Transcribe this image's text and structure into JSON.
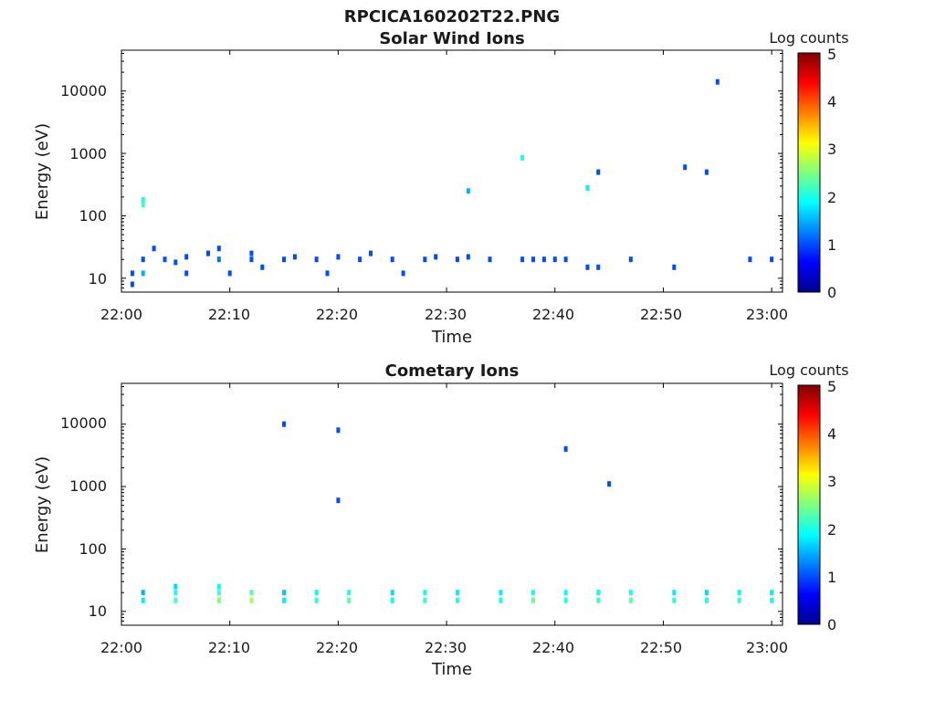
{
  "figure": {
    "title": "RPCICA160202T22.PNG"
  },
  "chart_data": [
    {
      "type": "heatmap",
      "title": "Solar Wind Ions",
      "xlabel": "Time",
      "ylabel": "Energy (eV)",
      "xticks": [
        "22:00",
        "22:10",
        "22:20",
        "22:30",
        "22:40",
        "22:50",
        "23:00"
      ],
      "yticks": [
        "10",
        "100",
        "1000",
        "10000"
      ],
      "yscale": "log",
      "xlim": [
        "22:00",
        "23:01"
      ],
      "ylim": [
        6,
        45000
      ],
      "colorbar": {
        "label": "Log counts",
        "range": [
          0,
          5
        ],
        "ticks": [
          "0",
          "1",
          "2",
          "3",
          "4",
          "5"
        ],
        "colormap": "jet"
      },
      "grid": false,
      "cells": [
        [
          "22:01",
          12,
          1
        ],
        [
          "22:01",
          8,
          1
        ],
        [
          "22:02",
          20,
          1
        ],
        [
          "22:02",
          12,
          1.5
        ],
        [
          "22:02",
          180,
          2
        ],
        [
          "22:02",
          150,
          2.2
        ],
        [
          "22:03",
          30,
          1
        ],
        [
          "22:04",
          20,
          1
        ],
        [
          "22:05",
          18,
          1
        ],
        [
          "22:06",
          22,
          1
        ],
        [
          "22:06",
          12,
          1
        ],
        [
          "22:08",
          25,
          1
        ],
        [
          "22:09",
          20,
          1.2
        ],
        [
          "22:09",
          30,
          1
        ],
        [
          "22:10",
          12,
          1
        ],
        [
          "22:12",
          20,
          1
        ],
        [
          "22:12",
          25,
          1
        ],
        [
          "22:13",
          15,
          1
        ],
        [
          "22:15",
          20,
          1
        ],
        [
          "22:16",
          22,
          1
        ],
        [
          "22:18",
          20,
          1
        ],
        [
          "22:19",
          12,
          1
        ],
        [
          "22:20",
          22,
          1
        ],
        [
          "22:22",
          20,
          1
        ],
        [
          "22:23",
          25,
          1
        ],
        [
          "22:25",
          20,
          1
        ],
        [
          "22:26",
          12,
          1
        ],
        [
          "22:28",
          20,
          1
        ],
        [
          "22:29",
          22,
          1
        ],
        [
          "22:31",
          20,
          1
        ],
        [
          "22:32",
          250,
          1.5
        ],
        [
          "22:32",
          22,
          1
        ],
        [
          "22:34",
          20,
          1
        ],
        [
          "22:37",
          850,
          2
        ],
        [
          "22:37",
          20,
          1
        ],
        [
          "22:38",
          20,
          1
        ],
        [
          "22:39",
          20,
          1
        ],
        [
          "22:40",
          20,
          1
        ],
        [
          "22:41",
          20,
          1
        ],
        [
          "22:43",
          280,
          1.8
        ],
        [
          "22:43",
          15,
          1
        ],
        [
          "22:44",
          15,
          1
        ],
        [
          "22:44",
          500,
          1
        ],
        [
          "22:47",
          20,
          1
        ],
        [
          "22:51",
          15,
          1
        ],
        [
          "22:52",
          600,
          1
        ],
        [
          "22:54",
          500,
          1
        ],
        [
          "22:55",
          14000,
          1
        ],
        [
          "22:58",
          20,
          1
        ],
        [
          "23:00",
          20,
          1
        ]
      ]
    },
    {
      "type": "heatmap",
      "title": "Cometary Ions",
      "xlabel": "Time",
      "ylabel": "Energy (eV)",
      "xticks": [
        "22:00",
        "22:10",
        "22:20",
        "22:30",
        "22:40",
        "22:50",
        "23:00"
      ],
      "yticks": [
        "10",
        "100",
        "1000",
        "10000"
      ],
      "yscale": "log",
      "xlim": [
        "22:00",
        "23:01"
      ],
      "ylim": [
        6,
        45000
      ],
      "colorbar": {
        "label": "Log counts",
        "range": [
          0,
          5
        ],
        "ticks": [
          "0",
          "1",
          "2",
          "3",
          "4",
          "5"
        ],
        "colormap": "jet"
      },
      "grid": false,
      "cells": [
        [
          "22:02",
          15,
          1.8
        ],
        [
          "22:02",
          20,
          1.5
        ],
        [
          "22:05",
          15,
          2.2
        ],
        [
          "22:05",
          20,
          2
        ],
        [
          "22:05",
          25,
          1.7
        ],
        [
          "22:09",
          15,
          2.5
        ],
        [
          "22:09",
          20,
          2.2
        ],
        [
          "22:09",
          25,
          1.9
        ],
        [
          "22:12",
          15,
          2.7
        ],
        [
          "22:12",
          20,
          2.3
        ],
        [
          "22:15",
          15,
          1.8
        ],
        [
          "22:15",
          20,
          1.6
        ],
        [
          "22:18",
          15,
          2.1
        ],
        [
          "22:18",
          20,
          1.9
        ],
        [
          "22:21",
          15,
          2.3
        ],
        [
          "22:21",
          20,
          2
        ],
        [
          "22:25",
          15,
          1.9
        ],
        [
          "22:25",
          20,
          1.7
        ],
        [
          "22:28",
          15,
          2.2
        ],
        [
          "22:28",
          20,
          2
        ],
        [
          "22:31",
          15,
          2.1
        ],
        [
          "22:31",
          20,
          1.8
        ],
        [
          "22:35",
          15,
          2
        ],
        [
          "22:35",
          20,
          1.8
        ],
        [
          "22:38",
          15,
          2.4
        ],
        [
          "22:38",
          20,
          2
        ],
        [
          "22:41",
          15,
          2.1
        ],
        [
          "22:41",
          20,
          1.9
        ],
        [
          "22:44",
          15,
          2.2
        ],
        [
          "22:44",
          20,
          1.9
        ],
        [
          "22:47",
          15,
          2.3
        ],
        [
          "22:47",
          20,
          2
        ],
        [
          "22:51",
          15,
          2.1
        ],
        [
          "22:51",
          20,
          1.8
        ],
        [
          "22:54",
          15,
          2
        ],
        [
          "22:54",
          20,
          1.7
        ],
        [
          "22:57",
          15,
          2.2
        ],
        [
          "22:57",
          20,
          1.9
        ],
        [
          "23:00",
          15,
          2
        ],
        [
          "23:00",
          20,
          1.8
        ],
        [
          "22:15",
          10000,
          1
        ],
        [
          "22:20",
          8000,
          1
        ],
        [
          "22:41",
          4000,
          1
        ],
        [
          "22:45",
          1100,
          1
        ],
        [
          "22:20",
          600,
          1
        ]
      ]
    }
  ]
}
